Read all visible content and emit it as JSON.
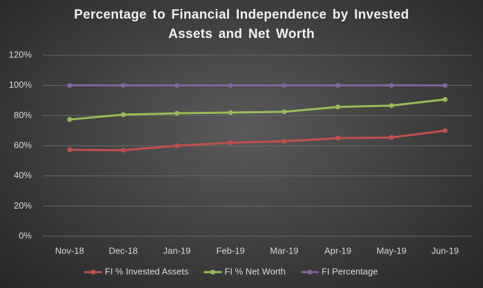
{
  "chart_data": {
    "type": "line",
    "title": "Percentage to Financial Independence by Invested Assets and Net Worth",
    "categories": [
      "Nov-18",
      "Dec-18",
      "Jan-19",
      "Feb-19",
      "Mar-19",
      "Apr-19",
      "May-19",
      "Jun-19"
    ],
    "series": [
      {
        "name": "FI % Invested Assets",
        "color": "#c0504d",
        "values": [
          57.3,
          57,
          60,
          62,
          63,
          65,
          65.5,
          70
        ]
      },
      {
        "name": "FI % Net Worth",
        "color": "#9bbb59",
        "values": [
          77.4,
          80.6,
          81.5,
          82,
          82.5,
          85.7,
          86.6,
          90.7
        ]
      },
      {
        "name": "FI Percentage",
        "color": "#8064a2",
        "values": [
          100,
          100,
          100,
          100,
          100,
          100,
          100,
          100
        ]
      }
    ],
    "ylim": [
      0,
      120
    ],
    "yticks": [
      {
        "value": 0,
        "label": "0%"
      },
      {
        "value": 20,
        "label": "20%"
      },
      {
        "value": 40,
        "label": "40%"
      },
      {
        "value": 60,
        "label": "60%"
      },
      {
        "value": 80,
        "label": "80%"
      },
      {
        "value": 100,
        "label": "100%"
      },
      {
        "value": 120,
        "label": "120%"
      }
    ],
    "grid": true,
    "legend": "bottom"
  }
}
